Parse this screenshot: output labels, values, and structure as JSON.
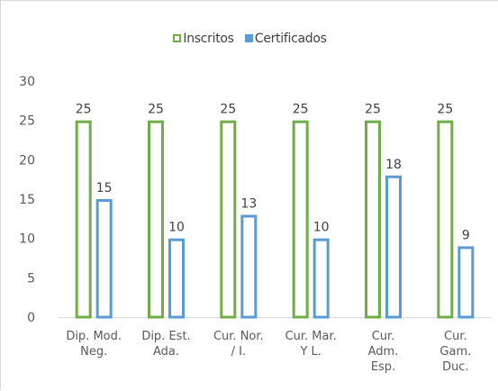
{
  "chart_data": {
    "type": "bar",
    "title": "",
    "xlabel": "",
    "ylabel": "",
    "ylim": [
      0,
      30
    ],
    "yticks": [
      0,
      5,
      10,
      15,
      20,
      25,
      30
    ],
    "grid": false,
    "legend_position": "top",
    "categories": [
      [
        "Dip. Mod.",
        "Neg."
      ],
      [
        "Dip. Est.",
        "Ada."
      ],
      [
        "Cur. Nor.",
        "/ I."
      ],
      [
        "Cur. Mar.",
        "Y L."
      ],
      [
        "Cur.",
        "Adm.",
        "Esp."
      ],
      [
        "Cur.",
        "Gam.",
        "Duc."
      ]
    ],
    "series": [
      {
        "name": "Inscritos",
        "color": "#70ad47",
        "values": [
          25,
          25,
          25,
          25,
          25,
          25
        ]
      },
      {
        "name": "Certificados",
        "color": "#5b9bd5",
        "values": [
          15,
          10,
          13,
          10,
          18,
          9
        ]
      }
    ]
  }
}
